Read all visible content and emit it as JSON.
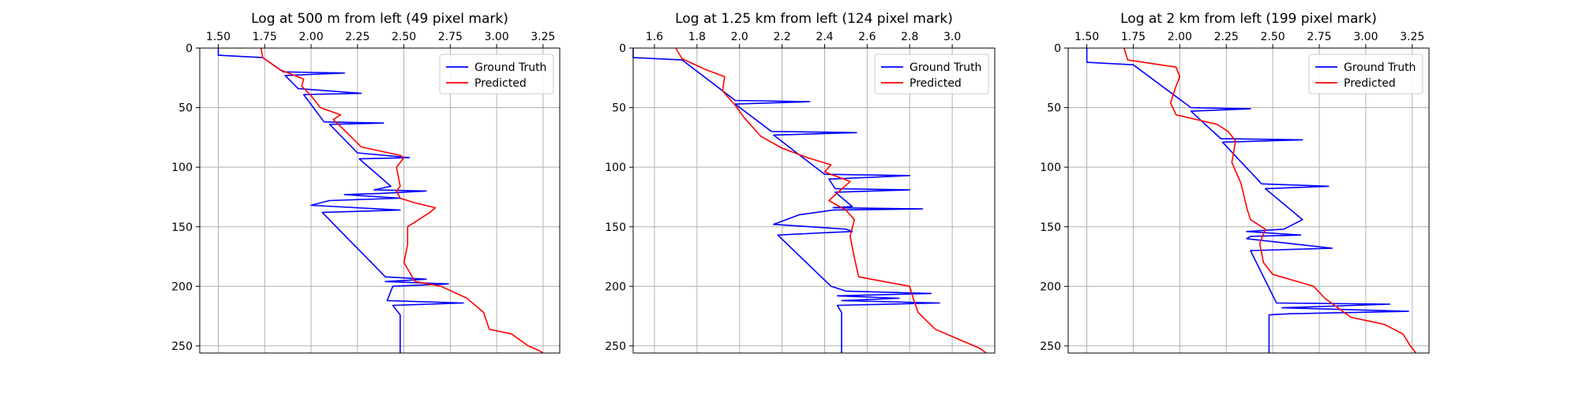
{
  "chart_data": [
    {
      "type": "line",
      "title": "Log at 500 m from left (49 pixel mark)",
      "xlim": [
        1.4,
        3.34
      ],
      "ylim": [
        256,
        0
      ],
      "xticks": [
        1.5,
        1.75,
        2.0,
        2.25,
        2.5,
        2.75,
        3.0,
        3.25
      ],
      "xtick_labels": [
        "1.50",
        "1.75",
        "2.00",
        "2.25",
        "2.50",
        "2.75",
        "3.00",
        "3.25"
      ],
      "yticks": [
        0,
        50,
        100,
        150,
        200,
        250
      ],
      "ytick_labels": [
        "0",
        "50",
        "100",
        "150",
        "200",
        "250"
      ],
      "x_axis_position": "top",
      "y_inverted": true,
      "grid": true,
      "legend_position": "top-right",
      "series": [
        {
          "name": "Ground Truth",
          "color": "#0000ff",
          "points": [
            [
              1.5,
              0
            ],
            [
              1.5,
              6
            ],
            [
              1.74,
              8
            ],
            [
              1.85,
              20
            ],
            [
              2.18,
              21
            ],
            [
              1.86,
              23
            ],
            [
              1.93,
              34
            ],
            [
              2.27,
              38
            ],
            [
              1.96,
              39
            ],
            [
              2.07,
              62
            ],
            [
              2.39,
              63
            ],
            [
              2.1,
              64
            ],
            [
              2.25,
              88
            ],
            [
              2.53,
              92
            ],
            [
              2.26,
              93
            ],
            [
              2.43,
              116
            ],
            [
              2.34,
              119
            ],
            [
              2.62,
              120
            ],
            [
              2.38,
              122
            ],
            [
              2.18,
              123
            ],
            [
              2.48,
              126
            ],
            [
              2.1,
              128
            ],
            [
              2.0,
              132
            ],
            [
              2.48,
              136
            ],
            [
              2.06,
              138
            ],
            [
              2.4,
              192
            ],
            [
              2.62,
              194
            ],
            [
              2.4,
              196
            ],
            [
              2.74,
              198
            ],
            [
              2.44,
              200
            ],
            [
              2.41,
              212
            ],
            [
              2.82,
              214
            ],
            [
              2.44,
              216
            ],
            [
              2.48,
              224
            ],
            [
              2.48,
              256
            ]
          ]
        },
        {
          "name": "Predicted",
          "color": "#ff0000",
          "points": [
            [
              1.73,
              0
            ],
            [
              1.74,
              8
            ],
            [
              1.83,
              18
            ],
            [
              1.96,
              26
            ],
            [
              1.95,
              32
            ],
            [
              2.0,
              40
            ],
            [
              2.05,
              50
            ],
            [
              2.16,
              56
            ],
            [
              2.12,
              60
            ],
            [
              2.2,
              72
            ],
            [
              2.27,
              83
            ],
            [
              2.48,
              90
            ],
            [
              2.5,
              92
            ],
            [
              2.46,
              100
            ],
            [
              2.48,
              116
            ],
            [
              2.46,
              120
            ],
            [
              2.48,
              126
            ],
            [
              2.56,
              130
            ],
            [
              2.67,
              134
            ],
            [
              2.64,
              138
            ],
            [
              2.52,
              150
            ],
            [
              2.52,
              165
            ],
            [
              2.5,
              180
            ],
            [
              2.56,
              196
            ],
            [
              2.7,
              200
            ],
            [
              2.84,
              210
            ],
            [
              2.93,
              222
            ],
            [
              2.96,
              236
            ],
            [
              3.08,
              240
            ],
            [
              3.17,
              250
            ],
            [
              3.23,
              254
            ],
            [
              3.25,
              256
            ]
          ]
        }
      ]
    },
    {
      "type": "line",
      "title": "Log at 1.25 km from left (124 pixel mark)",
      "xlim": [
        1.5,
        3.2
      ],
      "ylim": [
        256,
        0
      ],
      "xticks": [
        1.6,
        1.8,
        2.0,
        2.2,
        2.4,
        2.6,
        2.8,
        3.0
      ],
      "xtick_labels": [
        "1.6",
        "1.8",
        "2.0",
        "2.2",
        "2.4",
        "2.6",
        "2.8",
        "3.0"
      ],
      "yticks": [
        0,
        50,
        100,
        150,
        200,
        250
      ],
      "ytick_labels": [
        "0",
        "50",
        "100",
        "150",
        "200",
        "250"
      ],
      "x_axis_position": "top",
      "y_inverted": true,
      "grid": true,
      "legend_position": "top-right",
      "series": [
        {
          "name": "Ground Truth",
          "color": "#0000ff",
          "points": [
            [
              1.5,
              0
            ],
            [
              1.5,
              8
            ],
            [
              1.73,
              10
            ],
            [
              1.98,
              44
            ],
            [
              2.33,
              45
            ],
            [
              1.98,
              47
            ],
            [
              2.15,
              70
            ],
            [
              2.55,
              71
            ],
            [
              2.16,
              73
            ],
            [
              2.4,
              106
            ],
            [
              2.8,
              107
            ],
            [
              2.42,
              110
            ],
            [
              2.45,
              118
            ],
            [
              2.8,
              119
            ],
            [
              2.45,
              121
            ],
            [
              2.53,
              133
            ],
            [
              2.44,
              134
            ],
            [
              2.86,
              135
            ],
            [
              2.44,
              136
            ],
            [
              2.28,
              140
            ],
            [
              2.16,
              148
            ],
            [
              2.5,
              152
            ],
            [
              2.53,
              154
            ],
            [
              2.4,
              155
            ],
            [
              2.18,
              157
            ],
            [
              2.43,
              200
            ],
            [
              2.5,
              204
            ],
            [
              2.9,
              206
            ],
            [
              2.46,
              208
            ],
            [
              2.75,
              210
            ],
            [
              2.48,
              212
            ],
            [
              2.94,
              214
            ],
            [
              2.46,
              216
            ],
            [
              2.48,
              222
            ],
            [
              2.48,
              256
            ]
          ]
        },
        {
          "name": "Predicted",
          "color": "#ff0000",
          "points": [
            [
              1.7,
              0
            ],
            [
              1.73,
              9
            ],
            [
              1.84,
              18
            ],
            [
              1.93,
              24
            ],
            [
              1.92,
              36
            ],
            [
              1.98,
              48
            ],
            [
              2.02,
              58
            ],
            [
              2.1,
              74
            ],
            [
              2.2,
              84
            ],
            [
              2.32,
              92
            ],
            [
              2.43,
              98
            ],
            [
              2.4,
              104
            ],
            [
              2.52,
              112
            ],
            [
              2.42,
              128
            ],
            [
              2.5,
              136
            ],
            [
              2.54,
              144
            ],
            [
              2.52,
              158
            ],
            [
              2.54,
              176
            ],
            [
              2.56,
              192
            ],
            [
              2.8,
              200
            ],
            [
              2.82,
              212
            ],
            [
              2.84,
              222
            ],
            [
              2.92,
              236
            ],
            [
              3.05,
              246
            ],
            [
              3.13,
              252
            ],
            [
              3.16,
              256
            ]
          ]
        }
      ]
    },
    {
      "type": "line",
      "title": "Log at 2 km from left (199 pixel mark)",
      "xlim": [
        1.4,
        3.34
      ],
      "ylim": [
        256,
        0
      ],
      "xticks": [
        1.5,
        1.75,
        2.0,
        2.25,
        2.5,
        2.75,
        3.0,
        3.25
      ],
      "xtick_labels": [
        "1.50",
        "1.75",
        "2.00",
        "2.25",
        "2.50",
        "2.75",
        "3.00",
        "3.25"
      ],
      "yticks": [
        0,
        50,
        100,
        150,
        200,
        250
      ],
      "ytick_labels": [
        "0",
        "50",
        "100",
        "150",
        "200",
        "250"
      ],
      "x_axis_position": "top",
      "y_inverted": true,
      "grid": true,
      "legend_position": "top-right",
      "series": [
        {
          "name": "Ground Truth",
          "color": "#0000ff",
          "points": [
            [
              1.5,
              0
            ],
            [
              1.5,
              12
            ],
            [
              1.75,
              14
            ],
            [
              2.06,
              50
            ],
            [
              2.38,
              51
            ],
            [
              2.06,
              53
            ],
            [
              2.22,
              76
            ],
            [
              2.66,
              77
            ],
            [
              2.23,
              79
            ],
            [
              2.44,
              114
            ],
            [
              2.8,
              116
            ],
            [
              2.46,
              118
            ],
            [
              2.66,
              144
            ],
            [
              2.56,
              152
            ],
            [
              2.36,
              154
            ],
            [
              2.65,
              157
            ],
            [
              2.38,
              158
            ],
            [
              2.36,
              160
            ],
            [
              2.82,
              168
            ],
            [
              2.38,
              170
            ],
            [
              2.52,
              214
            ],
            [
              3.13,
              215
            ],
            [
              2.55,
              218
            ],
            [
              3.23,
              221
            ],
            [
              2.6,
              223
            ],
            [
              2.48,
              224
            ],
            [
              2.48,
              256
            ]
          ]
        },
        {
          "name": "Predicted",
          "color": "#ff0000",
          "points": [
            [
              1.7,
              0
            ],
            [
              1.72,
              10
            ],
            [
              1.98,
              16
            ],
            [
              2.0,
              24
            ],
            [
              1.98,
              32
            ],
            [
              1.95,
              46
            ],
            [
              1.98,
              56
            ],
            [
              2.2,
              64
            ],
            [
              2.26,
              70
            ],
            [
              2.3,
              78
            ],
            [
              2.28,
              96
            ],
            [
              2.33,
              114
            ],
            [
              2.36,
              134
            ],
            [
              2.38,
              144
            ],
            [
              2.46,
              152
            ],
            [
              2.43,
              164
            ],
            [
              2.45,
              180
            ],
            [
              2.5,
              190
            ],
            [
              2.72,
              200
            ],
            [
              2.78,
              210
            ],
            [
              2.92,
              226
            ],
            [
              3.1,
              232
            ],
            [
              3.2,
              240
            ],
            [
              3.24,
              250
            ],
            [
              3.27,
              256
            ]
          ]
        }
      ]
    }
  ]
}
